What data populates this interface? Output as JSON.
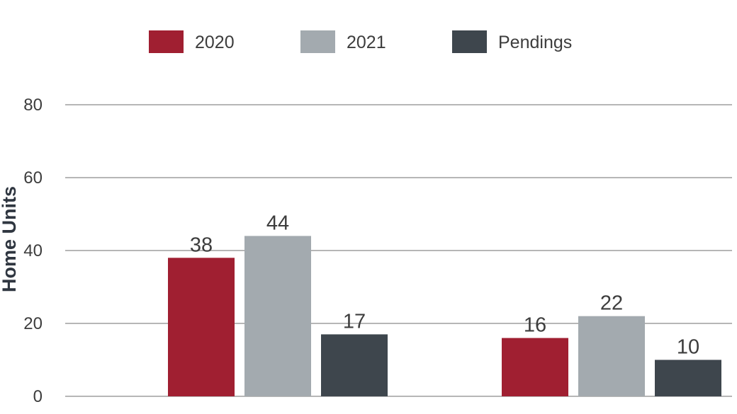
{
  "chart_data": {
    "type": "bar",
    "title": "",
    "xlabel": "",
    "ylabel": "Home Units",
    "ylim": [
      0,
      80
    ],
    "yticks": [
      0,
      20,
      40,
      60,
      80
    ],
    "grid": true,
    "legend_position": "top-center",
    "categories": [
      "",
      ""
    ],
    "series": [
      {
        "name": "2020",
        "color": "#a01f31",
        "values": [
          38,
          16
        ]
      },
      {
        "name": "2021",
        "color": "#a3aaaf",
        "values": [
          44,
          22
        ]
      },
      {
        "name": "Pendings",
        "color": "#3e464d",
        "values": [
          17,
          10
        ]
      }
    ]
  }
}
